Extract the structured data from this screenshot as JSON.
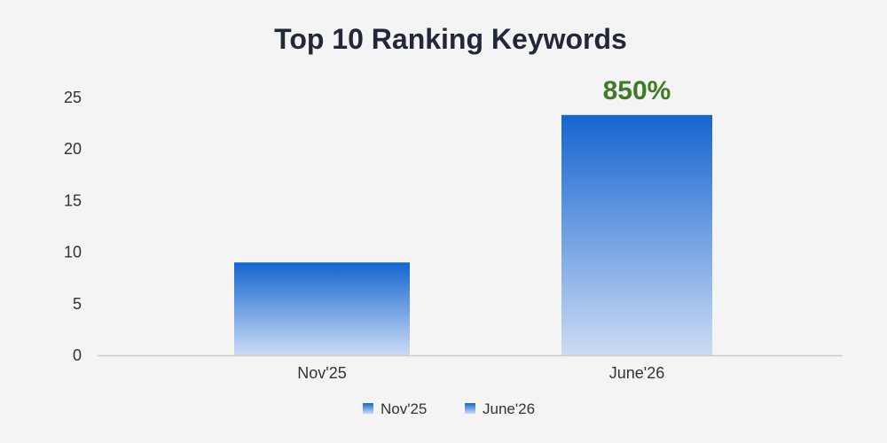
{
  "chart_data": {
    "type": "bar",
    "title": "Top 10 Ranking Keywords",
    "xlabel": "",
    "ylabel": "",
    "categories": [
      "Nov'25",
      "June'26"
    ],
    "values": [
      9,
      23.3
    ],
    "ylim": [
      0,
      25
    ],
    "yticks": [
      0,
      5,
      10,
      15,
      20,
      25
    ],
    "grid": false,
    "legend": {
      "position": "bottom",
      "entries": [
        "Nov'25",
        "June'26"
      ]
    },
    "annotations": [
      {
        "category": "June'26",
        "text": "850%"
      }
    ]
  },
  "colors": {
    "bar_top": "#1565d0",
    "bar_bottom": "#cbdcf4",
    "annotation": "#3f7a25",
    "axis": "#cccccc"
  }
}
